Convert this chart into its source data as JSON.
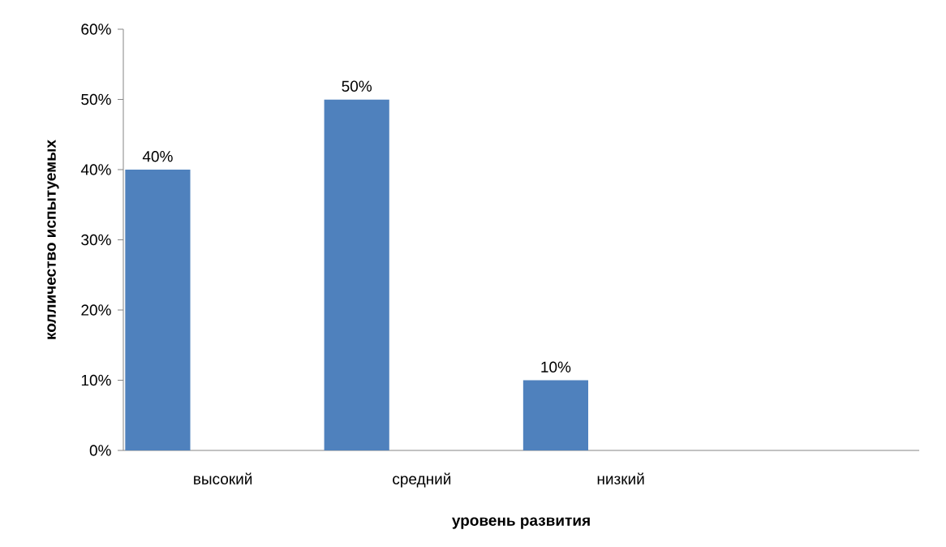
{
  "chart_data": {
    "type": "bar",
    "xlabel": "уровень развития",
    "ylabel": "колличество испытуемых",
    "categories": [
      "высокий",
      "средний",
      "низкий",
      null
    ],
    "values": [
      40,
      50,
      10,
      null
    ],
    "value_labels": [
      "40%",
      "50%",
      "10%",
      null
    ],
    "color": "#4f81bd",
    "ylim": [
      0,
      60
    ],
    "yticks": [
      {
        "value": 0,
        "label": "0%"
      },
      {
        "value": 10,
        "label": "10%"
      },
      {
        "value": 20,
        "label": "20%"
      },
      {
        "value": 30,
        "label": "30%"
      },
      {
        "value": 40,
        "label": "40%"
      },
      {
        "value": 50,
        "label": "50%"
      },
      {
        "value": 60,
        "label": "60%"
      }
    ],
    "grid": false
  }
}
